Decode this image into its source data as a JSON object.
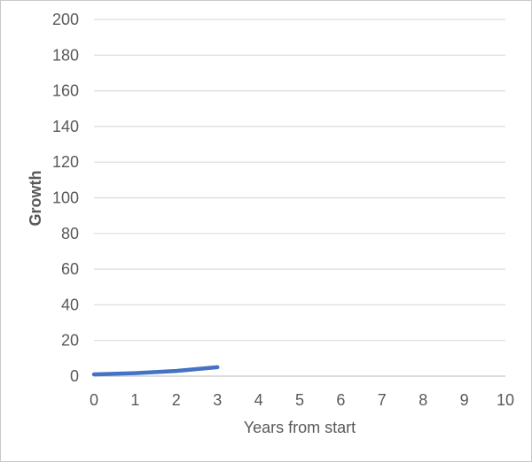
{
  "chart_data": {
    "type": "line",
    "title": "",
    "xlabel": "Years from start",
    "ylabel": "Growth",
    "xlim": [
      0,
      10
    ],
    "ylim": [
      0,
      200
    ],
    "x_ticks": [
      0,
      1,
      2,
      3,
      4,
      5,
      6,
      7,
      8,
      9,
      10
    ],
    "y_ticks": [
      0,
      20,
      40,
      60,
      80,
      100,
      120,
      140,
      160,
      180,
      200
    ],
    "grid": "horizontal",
    "legend": "none",
    "series": [
      {
        "x": [
          0,
          1,
          2,
          3
        ],
        "values": [
          1,
          1.7,
          2.9,
          5
        ],
        "color": "#4472C4",
        "width": 4.5
      }
    ]
  },
  "colors": {
    "background": "#ffffff",
    "frame_border": "#c9c9c9",
    "gridline": "#dcdcdc",
    "axis_line": "#d0d0d0",
    "tick_label": "#595959",
    "axis_title": "#595959"
  }
}
